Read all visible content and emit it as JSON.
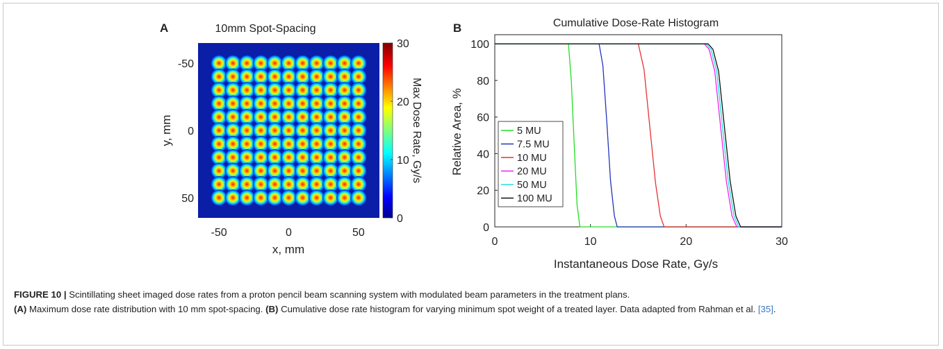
{
  "panel_a": {
    "letter": "A",
    "title": "10mm Spot-Spacing",
    "xlabel": "x, mm",
    "ylabel": "y, mm",
    "colorbar_label": "Max Dose Rate, Gy/s",
    "colorbar_ticks": [
      "30",
      "20",
      "10",
      "0"
    ]
  },
  "panel_b": {
    "letter": "B"
  },
  "caption": {
    "figure_label": "FIGURE 10 |",
    "line1": "Scintillating sheet imaged dose rates from a proton pencil beam scanning system with modulated beam parameters in the treatment plans.",
    "a_label": "(A)",
    "a_text": "Maximum dose rate distribution with 10 mm spot-spacing.",
    "b_label": "(B)",
    "b_text": "Cumulative dose rate histogram for varying minimum spot weight of a treated layer. Data adapted from Rahman et al.",
    "ref": "[35]",
    "end": "."
  },
  "chart_data": [
    {
      "type": "heatmap",
      "title": "10mm Spot-Spacing",
      "xlabel": "x, mm",
      "ylabel": "y, mm",
      "xlim": [
        -65,
        65
      ],
      "ylim": [
        -65,
        65
      ],
      "y_reversed": true,
      "xticks": [
        -50,
        0,
        50
      ],
      "yticks": [
        -50,
        0,
        50
      ],
      "spot_spacing_mm": 10,
      "spot_centers_mm": [
        -50,
        -40,
        -30,
        -20,
        -10,
        0,
        10,
        20,
        30,
        40,
        50
      ],
      "colorbar": {
        "label": "Max Dose Rate, Gy/s",
        "range": [
          0,
          30
        ],
        "ticks": [
          0,
          10,
          20,
          30
        ]
      },
      "colormap": "jet"
    },
    {
      "type": "line",
      "title": "Cumulative Dose-Rate Histogram",
      "xlabel": "Instantaneous Dose Rate, Gy/s",
      "ylabel": "Relative Area, %",
      "xlim": [
        0,
        30
      ],
      "ylim": [
        0,
        105
      ],
      "xticks": [
        0,
        10,
        20,
        30
      ],
      "yticks": [
        0,
        20,
        40,
        60,
        80,
        100
      ],
      "grid": false,
      "legend": "bottom-left",
      "series": [
        {
          "name": "5 MU",
          "color": "#22dd22",
          "x": [
            0,
            7.7,
            8.0,
            8.3,
            8.6,
            8.9,
            30
          ],
          "y": [
            100,
            100,
            80,
            45,
            12,
            0,
            0
          ]
        },
        {
          "name": "7.5 MU",
          "color": "#2233bb",
          "x": [
            0,
            10.9,
            11.3,
            11.7,
            12.1,
            12.5,
            12.8,
            30
          ],
          "y": [
            100,
            100,
            88,
            58,
            25,
            6,
            0,
            0
          ]
        },
        {
          "name": "10 MU",
          "color": "#e83030",
          "x": [
            0,
            15.0,
            15.6,
            16.2,
            16.8,
            17.3,
            17.7,
            30
          ],
          "y": [
            100,
            100,
            86,
            55,
            24,
            6,
            0,
            0
          ]
        },
        {
          "name": "20 MU",
          "color": "#ee22ee",
          "x": [
            0,
            21.9,
            22.4,
            23.0,
            23.6,
            24.2,
            24.8,
            25.3,
            30
          ],
          "y": [
            100,
            100,
            97,
            85,
            55,
            25,
            6,
            0,
            0
          ]
        },
        {
          "name": "50 MU",
          "color": "#22dddd",
          "x": [
            0,
            22.1,
            22.6,
            23.2,
            23.8,
            24.4,
            25.0,
            25.5,
            30
          ],
          "y": [
            100,
            100,
            97,
            85,
            55,
            25,
            6,
            0,
            0
          ]
        },
        {
          "name": "100 MU",
          "color": "#111111",
          "x": [
            0,
            22.3,
            22.8,
            23.4,
            24.0,
            24.6,
            25.2,
            25.7,
            30
          ],
          "y": [
            100,
            100,
            97,
            85,
            55,
            25,
            6,
            0,
            0
          ]
        }
      ]
    }
  ]
}
